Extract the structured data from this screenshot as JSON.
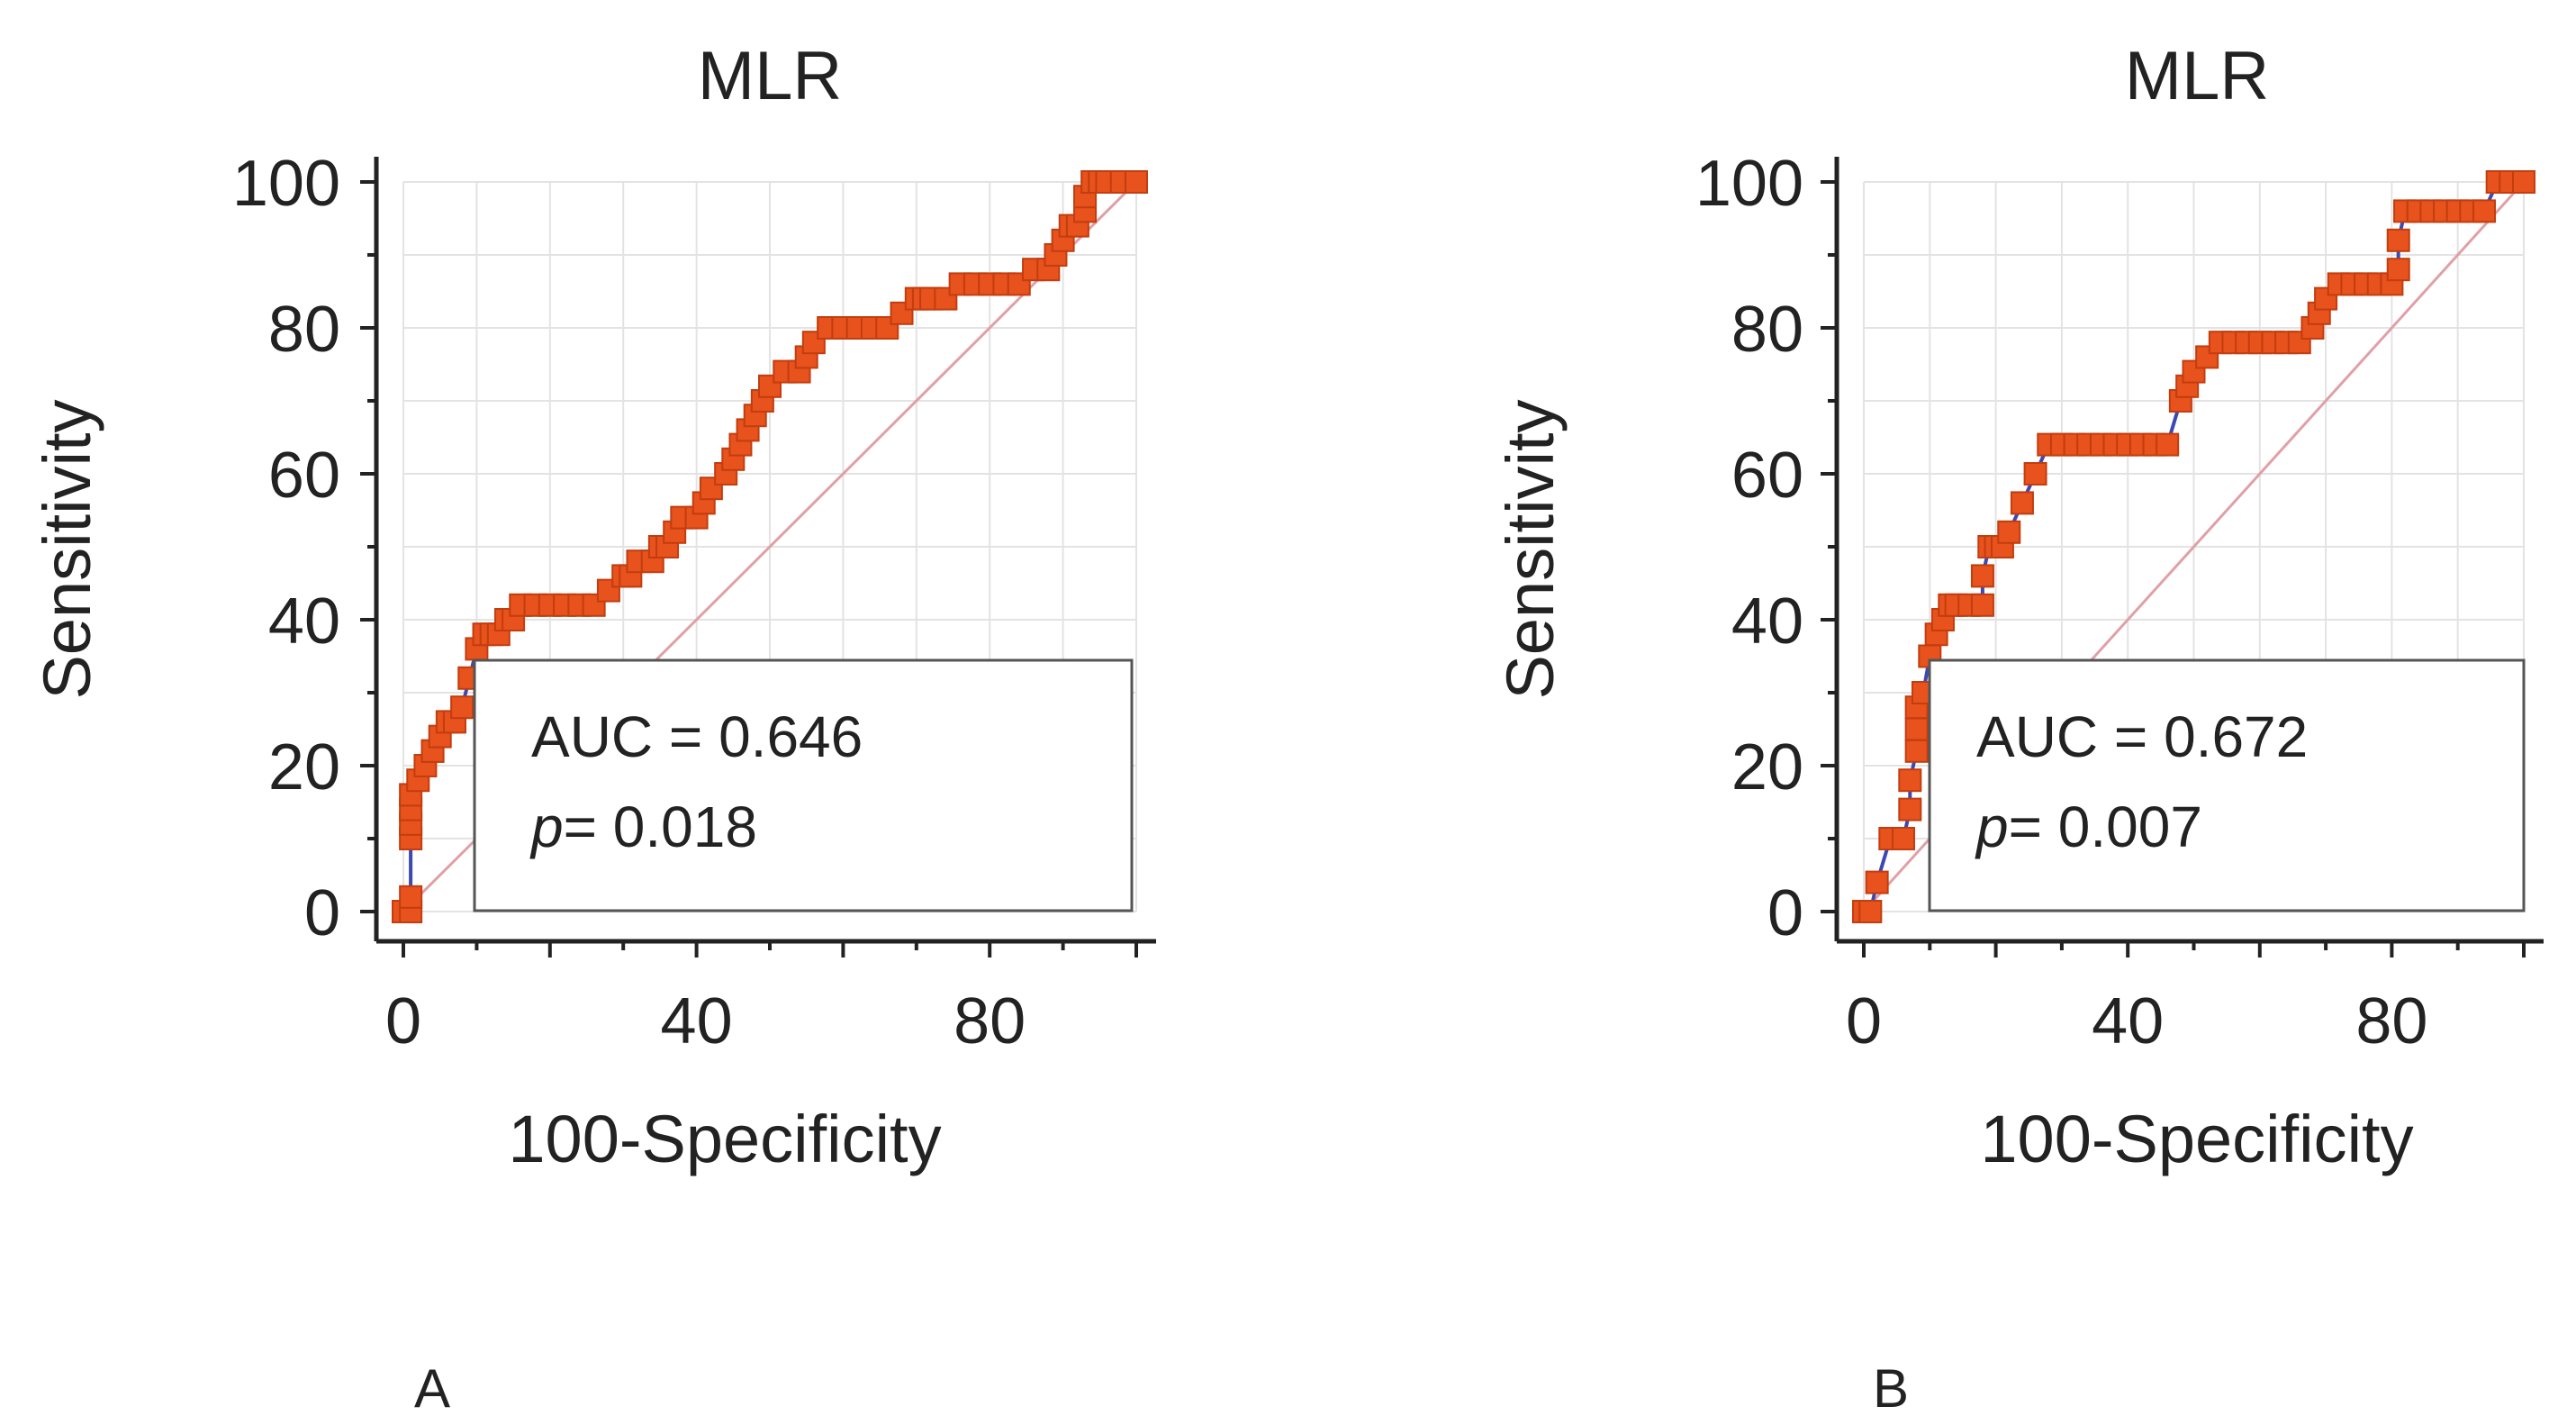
{
  "chart_data": [
    {
      "type": "line",
      "panel_label": "A",
      "title": "MLR",
      "xlabel": "100-Specificity",
      "ylabel": "Sensitivity",
      "xlim": [
        0,
        100
      ],
      "ylim": [
        0,
        100
      ],
      "xticks": [
        0,
        40,
        80
      ],
      "yticks": [
        0,
        20,
        40,
        60,
        80,
        100
      ],
      "grid": true,
      "series": [
        {
          "name": "ROC curve",
          "color": "#3b49b3",
          "marker_color": "#e8521c",
          "x": [
            0,
            1,
            1,
            1,
            1,
            1,
            1,
            2,
            3,
            4,
            4,
            5,
            6,
            7,
            8,
            9,
            10,
            11,
            12,
            13,
            14,
            15,
            16,
            18,
            20,
            22,
            24,
            26,
            28,
            30,
            31,
            32,
            34,
            35,
            36,
            37,
            38,
            40,
            41,
            42,
            44,
            45,
            46,
            47,
            48,
            49,
            50,
            52,
            54,
            55,
            56,
            58,
            60,
            62,
            64,
            66,
            68,
            70,
            71,
            72,
            74,
            76,
            78,
            80,
            82,
            84,
            86,
            88,
            89,
            90,
            91,
            92,
            93,
            93,
            94,
            95,
            96,
            98,
            100
          ],
          "y": [
            0,
            0,
            2,
            10,
            12,
            14,
            16,
            18,
            20,
            22,
            22,
            24,
            26,
            26,
            28,
            32,
            36,
            38,
            38,
            38,
            40,
            40,
            42,
            42,
            42,
            42,
            42,
            42,
            44,
            46,
            46,
            48,
            48,
            50,
            50,
            52,
            54,
            54,
            56,
            58,
            60,
            62,
            64,
            66,
            68,
            70,
            72,
            74,
            74,
            76,
            78,
            80,
            80,
            80,
            80,
            80,
            82,
            84,
            84,
            84,
            84,
            86,
            86,
            86,
            86,
            86,
            88,
            88,
            90,
            92,
            94,
            94,
            96,
            98,
            100,
            100,
            100,
            100,
            100
          ]
        },
        {
          "name": "Reference line",
          "color": "#e0a0a8",
          "x": [
            0,
            100
          ],
          "y": [
            0,
            100
          ]
        }
      ],
      "annotations": {
        "auc_text": "AUC = 0.646",
        "p_label": "p",
        "p_value_text": "= 0.018"
      }
    },
    {
      "type": "line",
      "panel_label": "B",
      "title": "MLR",
      "xlabel": "100-Specificity",
      "ylabel": "Sensitivity",
      "xlim": [
        0,
        100
      ],
      "ylim": [
        0,
        100
      ],
      "xticks": [
        0,
        40,
        80
      ],
      "yticks": [
        0,
        20,
        40,
        60,
        80,
        100
      ],
      "grid": true,
      "series": [
        {
          "name": "ROC curve",
          "color": "#3b49b3",
          "marker_color": "#e8521c",
          "x": [
            0,
            1,
            2,
            4,
            6,
            7,
            7,
            8,
            8,
            8,
            9,
            10,
            11,
            12,
            13,
            14,
            16,
            18,
            18,
            19,
            20,
            21,
            22,
            24,
            26,
            28,
            30,
            32,
            34,
            36,
            38,
            40,
            42,
            44,
            46,
            48,
            49,
            50,
            52,
            54,
            56,
            58,
            60,
            62,
            64,
            66,
            68,
            69,
            70,
            72,
            74,
            76,
            78,
            80,
            81,
            81,
            82,
            84,
            86,
            88,
            90,
            92,
            94,
            96,
            98,
            100
          ],
          "y": [
            0,
            0,
            4,
            10,
            10,
            14,
            18,
            22,
            25,
            28,
            30,
            35,
            38,
            40,
            42,
            42,
            42,
            42,
            46,
            50,
            50,
            50,
            52,
            56,
            60,
            64,
            64,
            64,
            64,
            64,
            64,
            64,
            64,
            64,
            64,
            70,
            72,
            74,
            76,
            78,
            78,
            78,
            78,
            78,
            78,
            78,
            80,
            82,
            84,
            86,
            86,
            86,
            86,
            86,
            88,
            92,
            96,
            96,
            96,
            96,
            96,
            96,
            96,
            100,
            100,
            100
          ]
        },
        {
          "name": "Reference line",
          "color": "#e0a0a8",
          "x": [
            0,
            100
          ],
          "y": [
            0,
            100
          ]
        }
      ],
      "annotations": {
        "auc_text": "AUC = 0.672",
        "p_label": "p",
        "p_value_text": "= 0.007"
      }
    }
  ]
}
